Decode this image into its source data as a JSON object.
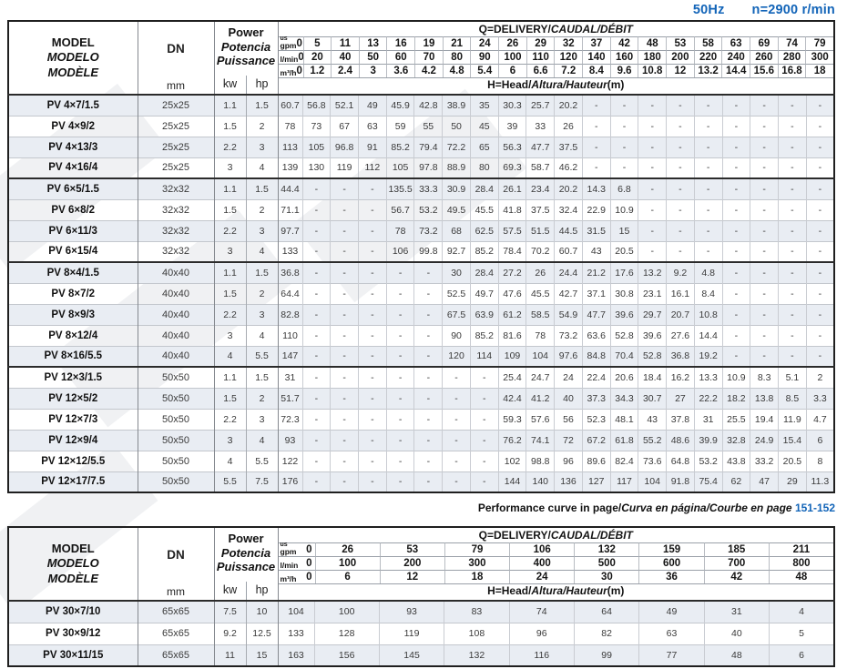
{
  "topline": {
    "frequency": "50Hz",
    "speed": "n=2900 r/min"
  },
  "footer": {
    "parts": [
      {
        "t": "Performance curve in page/",
        "i": false
      },
      {
        "t": "Curva en página/Courbe en page ",
        "i": true
      }
    ],
    "pages": "151-152"
  },
  "colors": {
    "accent_blue": "#1264b8",
    "row_shade": "#e9edf3"
  },
  "table1": {
    "left_header": {
      "model_lines": [
        {
          "t": "MODEL",
          "i": false
        },
        {
          "t": "MODELO",
          "i": true
        },
        {
          "t": "MODÈLE",
          "i": true
        }
      ],
      "dn": "DN",
      "mm": "mm",
      "power_lines": [
        {
          "t": "Power",
          "i": false
        },
        {
          "t": "Potencia",
          "i": true
        },
        {
          "t": "Puissance",
          "i": true
        }
      ],
      "kw": "kw",
      "hp": "hp"
    },
    "q_header": {
      "title_parts": [
        {
          "t": "Q=DELIVERY/",
          "i": false
        },
        {
          "t": "CAUDAL/DÉBIT",
          "i": true
        }
      ],
      "h_parts": [
        {
          "t": "H=Head/",
          "i": false
        },
        {
          "t": "Altura/Hauteur",
          "i": true
        },
        {
          "t": "(m)",
          "i": false
        }
      ],
      "unit_rows": [
        {
          "small": "us",
          "label": "gpm",
          "zero": "0",
          "values": [
            "5",
            "11",
            "13",
            "16",
            "19",
            "21",
            "24",
            "26",
            "29",
            "32",
            "37",
            "42",
            "48",
            "53",
            "58",
            "63",
            "69",
            "74",
            "79"
          ]
        },
        {
          "small": "",
          "label": "l/min",
          "zero": "0",
          "values": [
            "20",
            "40",
            "50",
            "60",
            "70",
            "80",
            "90",
            "100",
            "110",
            "120",
            "140",
            "160",
            "180",
            "200",
            "220",
            "240",
            "260",
            "280",
            "300"
          ]
        },
        {
          "small": "",
          "label": "m³/h",
          "zero": "0",
          "values": [
            "1.2",
            "2.4",
            "3",
            "3.6",
            "4.2",
            "4.8",
            "5.4",
            "6",
            "6.6",
            "7.2",
            "8.4",
            "9.6",
            "10.8",
            "12",
            "13.2",
            "14.4",
            "15.6",
            "16.8",
            "18"
          ]
        }
      ]
    },
    "rows": [
      {
        "model": "PV 4×7/1.5",
        "dn": "25x25",
        "kw": "1.1",
        "hp": "1.5",
        "group_start": false,
        "values": [
          "60.7",
          "56.8",
          "52.1",
          "49",
          "45.9",
          "42.8",
          "38.9",
          "35",
          "30.3",
          "25.7",
          "20.2",
          "-",
          "-",
          "-",
          "-",
          "-",
          "-",
          "-",
          "-",
          "-"
        ]
      },
      {
        "model": "PV 4×9/2",
        "dn": "25x25",
        "kw": "1.5",
        "hp": "2",
        "group_start": false,
        "values": [
          "78",
          "73",
          "67",
          "63",
          "59",
          "55",
          "50",
          "45",
          "39",
          "33",
          "26",
          "-",
          "-",
          "-",
          "-",
          "-",
          "-",
          "-",
          "-",
          "-"
        ]
      },
      {
        "model": "PV 4×13/3",
        "dn": "25x25",
        "kw": "2.2",
        "hp": "3",
        "group_start": false,
        "values": [
          "113",
          "105",
          "96.8",
          "91",
          "85.2",
          "79.4",
          "72.2",
          "65",
          "56.3",
          "47.7",
          "37.5",
          "-",
          "-",
          "-",
          "-",
          "-",
          "-",
          "-",
          "-",
          "-"
        ]
      },
      {
        "model": "PV 4×16/4",
        "dn": "25x25",
        "kw": "3",
        "hp": "4",
        "group_start": false,
        "values": [
          "139",
          "130",
          "119",
          "112",
          "105",
          "97.8",
          "88.9",
          "80",
          "69.3",
          "58.7",
          "46.2",
          "-",
          "-",
          "-",
          "-",
          "-",
          "-",
          "-",
          "-",
          "-"
        ]
      },
      {
        "model": "PV 6×5/1.5",
        "dn": "32x32",
        "kw": "1.1",
        "hp": "1.5",
        "group_start": true,
        "values": [
          "44.4",
          "-",
          "-",
          "-",
          "135.5",
          "33.3",
          "30.9",
          "28.4",
          "26.1",
          "23.4",
          "20.2",
          "14.3",
          "6.8",
          "-",
          "-",
          "-",
          "-",
          "-",
          "-",
          "-"
        ]
      },
      {
        "model": "PV 6×8/2",
        "dn": "32x32",
        "kw": "1.5",
        "hp": "2",
        "group_start": false,
        "values": [
          "71.1",
          "-",
          "-",
          "-",
          "56.7",
          "53.2",
          "49.5",
          "45.5",
          "41.8",
          "37.5",
          "32.4",
          "22.9",
          "10.9",
          "-",
          "-",
          "-",
          "-",
          "-",
          "-",
          "-"
        ]
      },
      {
        "model": "PV 6×11/3",
        "dn": "32x32",
        "kw": "2.2",
        "hp": "3",
        "group_start": false,
        "values": [
          "97.7",
          "-",
          "-",
          "-",
          "78",
          "73.2",
          "68",
          "62.5",
          "57.5",
          "51.5",
          "44.5",
          "31.5",
          "15",
          "-",
          "-",
          "-",
          "-",
          "-",
          "-",
          "-"
        ]
      },
      {
        "model": "PV 6×15/4",
        "dn": "32x32",
        "kw": "3",
        "hp": "4",
        "group_start": false,
        "values": [
          "133",
          "-",
          "-",
          "-",
          "106",
          "99.8",
          "92.7",
          "85.2",
          "78.4",
          "70.2",
          "60.7",
          "43",
          "20.5",
          "-",
          "-",
          "-",
          "-",
          "-",
          "-",
          "-"
        ]
      },
      {
        "model": "PV 8×4/1.5",
        "dn": "40x40",
        "kw": "1.1",
        "hp": "1.5",
        "group_start": true,
        "values": [
          "36.8",
          "-",
          "-",
          "-",
          "-",
          "-",
          "30",
          "28.4",
          "27.2",
          "26",
          "24.4",
          "21.2",
          "17.6",
          "13.2",
          "9.2",
          "4.8",
          "-",
          "-",
          "-",
          "-"
        ]
      },
      {
        "model": "PV 8×7/2",
        "dn": "40x40",
        "kw": "1.5",
        "hp": "2",
        "group_start": false,
        "values": [
          "64.4",
          "-",
          "-",
          "-",
          "-",
          "-",
          "52.5",
          "49.7",
          "47.6",
          "45.5",
          "42.7",
          "37.1",
          "30.8",
          "23.1",
          "16.1",
          "8.4",
          "-",
          "-",
          "-",
          "-"
        ]
      },
      {
        "model": "PV 8×9/3",
        "dn": "40x40",
        "kw": "2.2",
        "hp": "3",
        "group_start": false,
        "values": [
          "82.8",
          "-",
          "-",
          "-",
          "-",
          "-",
          "67.5",
          "63.9",
          "61.2",
          "58.5",
          "54.9",
          "47.7",
          "39.6",
          "29.7",
          "20.7",
          "10.8",
          "-",
          "-",
          "-",
          "-"
        ]
      },
      {
        "model": "PV 8×12/4",
        "dn": "40x40",
        "kw": "3",
        "hp": "4",
        "group_start": false,
        "values": [
          "110",
          "-",
          "-",
          "-",
          "-",
          "-",
          "90",
          "85.2",
          "81.6",
          "78",
          "73.2",
          "63.6",
          "52.8",
          "39.6",
          "27.6",
          "14.4",
          "-",
          "-",
          "-",
          "-"
        ]
      },
      {
        "model": "PV 8×16/5.5",
        "dn": "40x40",
        "kw": "4",
        "hp": "5.5",
        "group_start": false,
        "values": [
          "147",
          "-",
          "-",
          "-",
          "-",
          "-",
          "120",
          "114",
          "109",
          "104",
          "97.6",
          "84.8",
          "70.4",
          "52.8",
          "36.8",
          "19.2",
          "-",
          "-",
          "-",
          "-"
        ]
      },
      {
        "model": "PV 12×3/1.5",
        "dn": "50x50",
        "kw": "1.1",
        "hp": "1.5",
        "group_start": true,
        "values": [
          "31",
          "-",
          "-",
          "-",
          "-",
          "-",
          "-",
          "-",
          "25.4",
          "24.7",
          "24",
          "22.4",
          "20.6",
          "18.4",
          "16.2",
          "13.3",
          "10.9",
          "8.3",
          "5.1",
          "2"
        ]
      },
      {
        "model": "PV 12×5/2",
        "dn": "50x50",
        "kw": "1.5",
        "hp": "2",
        "group_start": false,
        "values": [
          "51.7",
          "-",
          "-",
          "-",
          "-",
          "-",
          "-",
          "-",
          "42.4",
          "41.2",
          "40",
          "37.3",
          "34.3",
          "30.7",
          "27",
          "22.2",
          "18.2",
          "13.8",
          "8.5",
          "3.3"
        ]
      },
      {
        "model": "PV 12×7/3",
        "dn": "50x50",
        "kw": "2.2",
        "hp": "3",
        "group_start": false,
        "values": [
          "72.3",
          "-",
          "-",
          "-",
          "-",
          "-",
          "-",
          "-",
          "59.3",
          "57.6",
          "56",
          "52.3",
          "48.1",
          "43",
          "37.8",
          "31",
          "25.5",
          "19.4",
          "11.9",
          "4.7"
        ]
      },
      {
        "model": "PV 12×9/4",
        "dn": "50x50",
        "kw": "3",
        "hp": "4",
        "group_start": false,
        "values": [
          "93",
          "-",
          "-",
          "-",
          "-",
          "-",
          "-",
          "-",
          "76.2",
          "74.1",
          "72",
          "67.2",
          "61.8",
          "55.2",
          "48.6",
          "39.9",
          "32.8",
          "24.9",
          "15.4",
          "6"
        ]
      },
      {
        "model": "PV 12×12/5.5",
        "dn": "50x50",
        "kw": "4",
        "hp": "5.5",
        "group_start": false,
        "values": [
          "122",
          "-",
          "-",
          "-",
          "-",
          "-",
          "-",
          "-",
          "102",
          "98.8",
          "96",
          "89.6",
          "82.4",
          "73.6",
          "64.8",
          "53.2",
          "43.8",
          "33.2",
          "20.5",
          "8"
        ]
      },
      {
        "model": "PV 12×17/7.5",
        "dn": "50x50",
        "kw": "5.5",
        "hp": "7.5",
        "group_start": false,
        "values": [
          "176",
          "-",
          "-",
          "-",
          "-",
          "-",
          "-",
          "-",
          "144",
          "140",
          "136",
          "127",
          "117",
          "104",
          "91.8",
          "75.4",
          "62",
          "47",
          "29",
          "11.3"
        ]
      }
    ]
  },
  "table2": {
    "left_header": {
      "model_lines": [
        {
          "t": "MODEL",
          "i": false
        },
        {
          "t": "MODELO",
          "i": true
        },
        {
          "t": "MODÈLE",
          "i": true
        }
      ],
      "dn": "DN",
      "mm": "mm",
      "power_lines": [
        {
          "t": "Power",
          "i": false
        },
        {
          "t": "Potencia",
          "i": true
        },
        {
          "t": "Puissance",
          "i": true
        }
      ],
      "kw": "kw",
      "hp": "hp"
    },
    "q_header": {
      "title_parts": [
        {
          "t": "Q=DELIVERY/",
          "i": false
        },
        {
          "t": "CAUDAL/DÉBIT",
          "i": true
        }
      ],
      "h_parts": [
        {
          "t": "H=Head/",
          "i": false
        },
        {
          "t": "Altura/Hauteur",
          "i": true
        },
        {
          "t": "(m)",
          "i": false
        }
      ],
      "unit_rows": [
        {
          "small": "us",
          "label": "gpm",
          "zero": "0",
          "values": [
            "26",
            "53",
            "79",
            "106",
            "132",
            "159",
            "185",
            "211"
          ]
        },
        {
          "small": "",
          "label": "l/min",
          "zero": "0",
          "values": [
            "100",
            "200",
            "300",
            "400",
            "500",
            "600",
            "700",
            "800"
          ]
        },
        {
          "small": "",
          "label": "m³/h",
          "zero": "0",
          "values": [
            "6",
            "12",
            "18",
            "24",
            "30",
            "36",
            "42",
            "48"
          ]
        }
      ]
    },
    "rows": [
      {
        "model": "PV 30×7/10",
        "dn": "65x65",
        "kw": "7.5",
        "hp": "10",
        "group_start": false,
        "values": [
          "104",
          "100",
          "93",
          "83",
          "74",
          "64",
          "49",
          "31",
          "4"
        ]
      },
      {
        "model": "PV 30×9/12",
        "dn": "65x65",
        "kw": "9.2",
        "hp": "12.5",
        "group_start": false,
        "values": [
          "133",
          "128",
          "119",
          "108",
          "96",
          "82",
          "63",
          "40",
          "5"
        ]
      },
      {
        "model": "PV 30×11/15",
        "dn": "65x65",
        "kw": "11",
        "hp": "15",
        "group_start": false,
        "values": [
          "163",
          "156",
          "145",
          "132",
          "116",
          "99",
          "77",
          "48",
          "6"
        ]
      }
    ]
  }
}
